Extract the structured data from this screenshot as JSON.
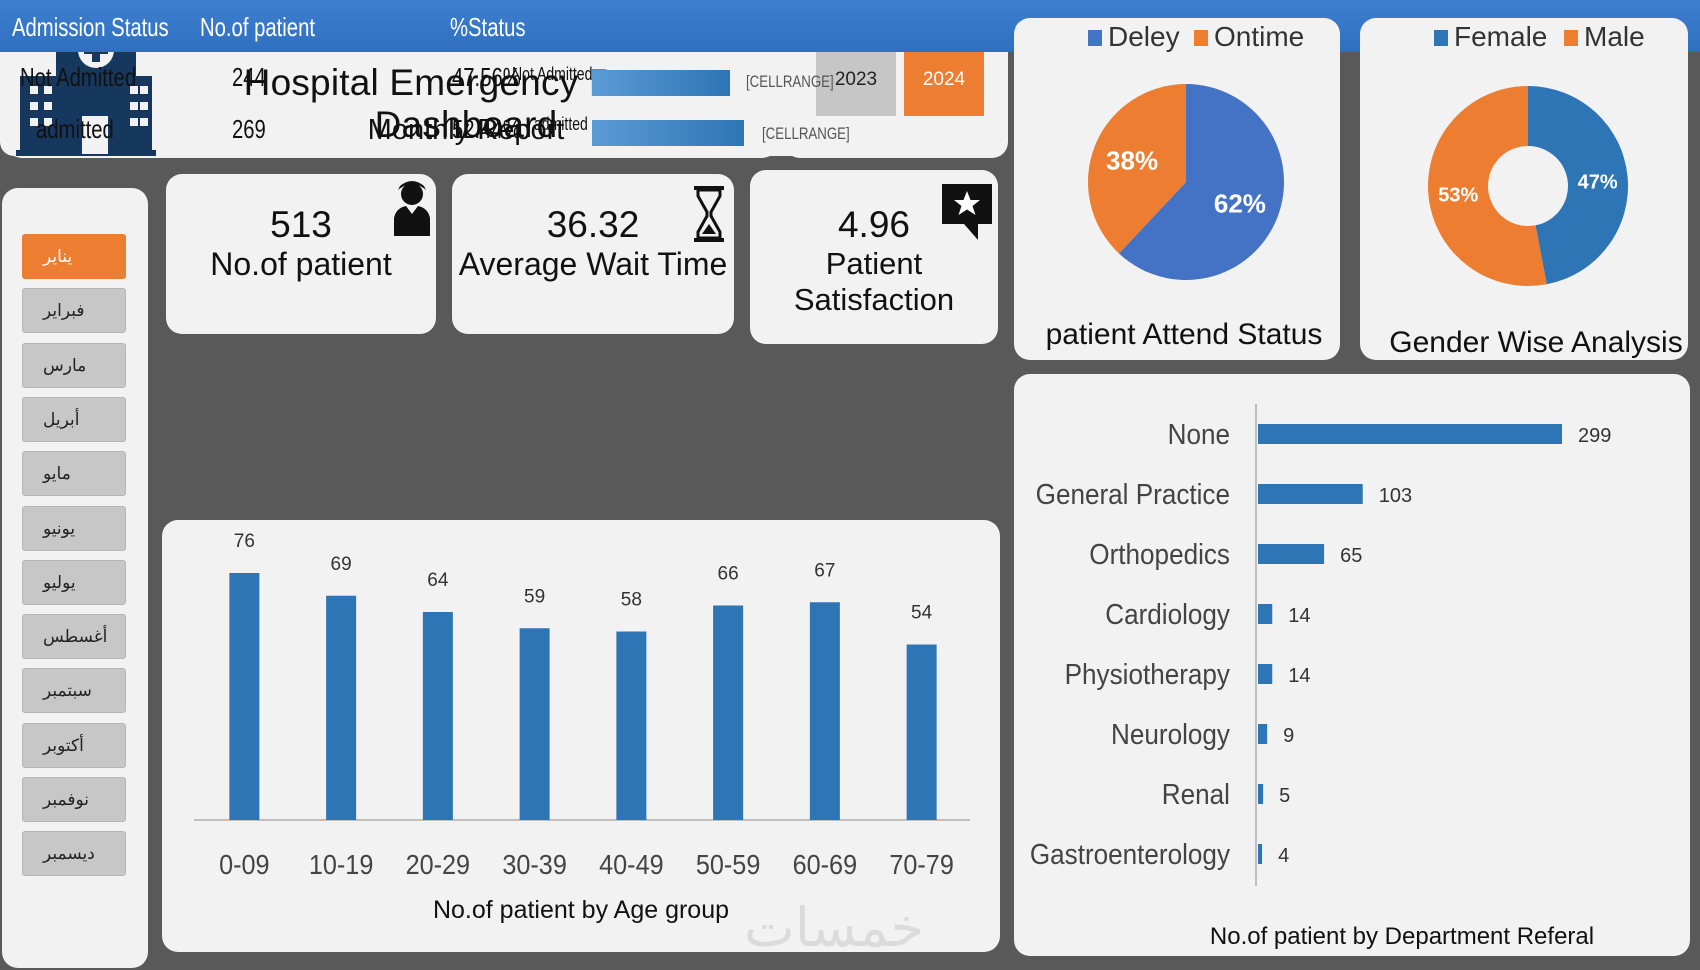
{
  "header": {
    "title": "Hospital Emergency Room Dashboard",
    "subtitle": "Monthly Report",
    "years": [
      "2023",
      "2024"
    ],
    "active_year": "2024"
  },
  "months": [
    "يناير",
    "فبراير",
    "مارس",
    "أبريل",
    "مايو",
    "يونيو",
    "يوليو",
    "أغسطس",
    "سبتمبر",
    "أكتوبر",
    "نوفمبر",
    "ديسمبر"
  ],
  "active_month": "يناير",
  "kpis": {
    "patients": {
      "value": "513",
      "label": "No.of patient"
    },
    "wait": {
      "value": "36.32",
      "label": "Average Wait Time"
    },
    "satisfaction": {
      "value": "4.96",
      "label": "Patient Satisfaction"
    }
  },
  "admission": {
    "headers": [
      "Admission Status",
      "No.of patient",
      "%Status"
    ],
    "rows": [
      {
        "status": "Not Admitted",
        "count": "244",
        "pct": "47.56%",
        "bar_label": "Not Admitted",
        "share": 0.4756,
        "range": "[CELLRANGE]"
      },
      {
        "status": "admitted",
        "count": "269",
        "pct": "52.44%",
        "bar_label": "admitted",
        "share": 0.5244,
        "range": "[CELLRANGE]"
      }
    ]
  },
  "colors": {
    "blue": "#2e75b6",
    "pie_blue": "#4472c4",
    "orange": "#ed7d31"
  },
  "watermark": "خمسات",
  "chart_data": [
    {
      "type": "bar",
      "title": "No.of patient by Age group",
      "categories": [
        "0-09",
        "10-19",
        "20-29",
        "30-39",
        "40-49",
        "50-59",
        "60-69",
        "70-79"
      ],
      "values": [
        76,
        69,
        64,
        59,
        58,
        66,
        67,
        54
      ],
      "ylim": [
        0,
        80
      ]
    },
    {
      "type": "pie",
      "title": "patient Attend Status",
      "labels": [
        "Deley",
        "Ontime"
      ],
      "values": [
        62,
        38
      ],
      "value_labels": [
        "62%",
        "38%"
      ]
    },
    {
      "type": "pie",
      "variant": "donut",
      "title": "Gender Wise Analysis",
      "labels": [
        "Female",
        "Male"
      ],
      "values": [
        47,
        53
      ],
      "value_labels": [
        "47%",
        "53%"
      ]
    },
    {
      "type": "bar",
      "orientation": "horizontal",
      "title": "No.of patient by Department Referal",
      "categories": [
        "None",
        "General Practice",
        "Orthopedics",
        "Cardiology",
        "Physiotherapy",
        "Neurology",
        "Renal",
        "Gastroenterology"
      ],
      "values": [
        299,
        103,
        65,
        14,
        14,
        9,
        5,
        4
      ],
      "xlim": [
        0,
        320
      ]
    }
  ]
}
